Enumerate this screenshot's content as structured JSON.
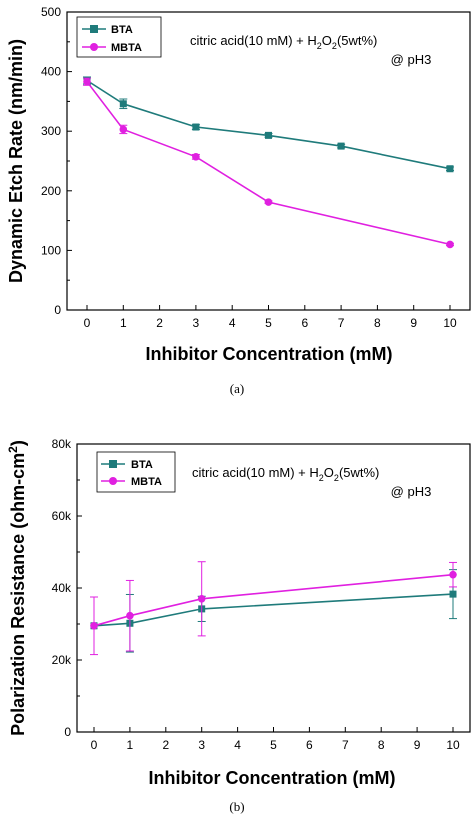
{
  "colors": {
    "bta": "#1f7b7b",
    "mbta": "#e020e0"
  },
  "chart_data": [
    {
      "type": "line",
      "caption": "(a)",
      "ylabel": "Dynamic Etch Rate (nm/min)",
      "xlabel": "Inhibitor Concentration (mM)",
      "x_ticks": [
        "0",
        "1",
        "2",
        "3",
        "4",
        "5",
        "6",
        "7",
        "8",
        "9",
        "10"
      ],
      "y_ticks": [
        "0",
        "100",
        "200",
        "300",
        "400",
        "500"
      ],
      "ylim": [
        0,
        500
      ],
      "legend_placement": "top-left",
      "annotation_line1": "citric acid(10 mM) + H",
      "annotation_sub1": "2",
      "annotation_o": "O",
      "annotation_sub2": "2",
      "annotation_tail": "(5wt%)",
      "annotation_line2": "@ pH3",
      "series": [
        {
          "name": "BTA",
          "color": "#1f7b7b",
          "marker": "square",
          "x": [
            0,
            1,
            3,
            5,
            7,
            10
          ],
          "y": [
            385,
            346,
            307,
            293,
            275,
            237
          ],
          "err": [
            6,
            8,
            4,
            3,
            3,
            3
          ]
        },
        {
          "name": "MBTA",
          "color": "#e020e0",
          "marker": "circle",
          "x": [
            0,
            1,
            3,
            5,
            10
          ],
          "y": [
            383,
            303,
            257,
            181,
            110
          ],
          "err": [
            6,
            7,
            4,
            2,
            2
          ]
        }
      ]
    },
    {
      "type": "line",
      "caption": "(b)",
      "ylabel_main": "Polarization Resistance (ohm-cm",
      "ylabel_sup": "2",
      "ylabel_tail": ")",
      "xlabel": "Inhibitor Concentration (mM)",
      "x_ticks": [
        "0",
        "1",
        "2",
        "3",
        "4",
        "5",
        "6",
        "7",
        "8",
        "9",
        "10"
      ],
      "y_ticks": [
        "0",
        "20k",
        "40k",
        "60k",
        "80k"
      ],
      "ylim": [
        0,
        80000
      ],
      "legend_placement": "top-left",
      "annotation_line1": "citric acid(10 mM) + H",
      "annotation_sub1": "2",
      "annotation_o": "O",
      "annotation_sub2": "2",
      "annotation_tail": "(5wt%)",
      "annotation_line2": "@ pH3",
      "series": [
        {
          "name": "BTA",
          "color": "#1f7b7b",
          "marker": "square",
          "x": [
            0,
            1,
            3,
            10
          ],
          "y": [
            29500,
            30200,
            34200,
            38300
          ],
          "err": [
            0,
            8000,
            3500,
            6800
          ]
        },
        {
          "name": "MBTA",
          "color": "#e020e0",
          "marker": "circle",
          "x": [
            0,
            1,
            3,
            10
          ],
          "y": [
            29500,
            32300,
            37000,
            43700
          ],
          "err": [
            8000,
            9800,
            10300,
            3400
          ]
        }
      ]
    }
  ]
}
